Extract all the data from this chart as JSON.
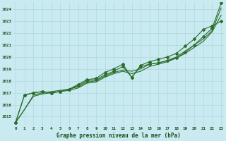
{
  "title": "Graphe pression niveau de la mer (hPa)",
  "bg_color": "#c8eaf0",
  "grid_color": "#b0d8e0",
  "line_color": "#2d6e2d",
  "ylim": [
    1014.2,
    1024.6
  ],
  "yticks": [
    1015,
    1016,
    1017,
    1018,
    1019,
    1020,
    1021,
    1022,
    1023,
    1024
  ],
  "xlim": [
    -0.3,
    23.3
  ],
  "x_ticks": [
    0,
    1,
    2,
    3,
    4,
    5,
    6,
    7,
    8,
    9,
    10,
    11,
    12,
    13,
    14,
    15,
    16,
    17,
    18,
    19,
    20,
    21,
    22,
    23
  ],
  "series_no_marker": [
    [
      1014.5,
      1015.6,
      1016.7,
      1016.9,
      1017.0,
      1017.1,
      1017.2,
      1017.4,
      1017.8,
      1017.9,
      1018.3,
      1018.6,
      1018.8,
      1018.6,
      1018.8,
      1019.2,
      1019.4,
      1019.6,
      1019.9,
      1020.3,
      1020.8,
      1021.3,
      1022.1,
      1023.5
    ],
    [
      1014.5,
      1015.6,
      1016.8,
      1017.0,
      1017.1,
      1017.2,
      1017.3,
      1017.5,
      1017.9,
      1018.0,
      1018.4,
      1018.7,
      1018.9,
      1018.8,
      1019.0,
      1019.4,
      1019.5,
      1019.7,
      1020.0,
      1020.5,
      1021.0,
      1021.5,
      1022.2,
      1024.1
    ]
  ],
  "series_with_marker": [
    [
      1014.5,
      1016.8,
      1017.0,
      1017.1,
      1017.0,
      1017.1,
      1017.3,
      1017.6,
      1018.0,
      1018.1,
      1018.5,
      1018.8,
      1019.2,
      1018.3,
      1019.2,
      1019.4,
      1019.5,
      1019.7,
      1019.9,
      1020.4,
      1021.0,
      1021.7,
      1022.4,
      1024.5
    ],
    [
      1014.5,
      1016.8,
      1017.0,
      1017.1,
      1017.0,
      1017.1,
      1017.3,
      1017.7,
      1018.1,
      1018.2,
      1018.7,
      1019.0,
      1019.4,
      1018.3,
      1019.3,
      1019.6,
      1019.8,
      1020.0,
      1020.3,
      1020.9,
      1021.5,
      1022.3,
      1022.6,
      1023.0
    ]
  ]
}
